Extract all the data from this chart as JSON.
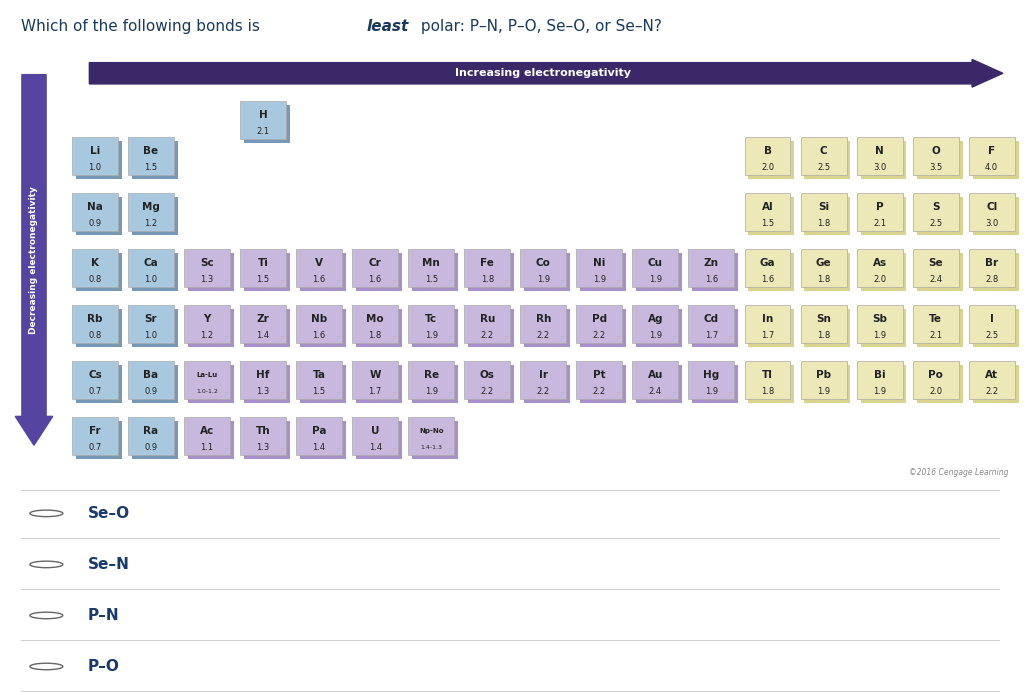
{
  "increasing_label": "Increasing electronegativity",
  "decreasing_label": "Decreasing electronegativity",
  "copyright": "©2016 Cengage Learning",
  "answer_options": [
    "Se–O",
    "Se–N",
    "P–N",
    "P–O"
  ],
  "blue_color": "#a8c8e0",
  "purple_color": "#c8b8de",
  "yellow_color": "#ede8b8",
  "yellow_shadow": "#d8d490",
  "blue_shadow": "#7898b8",
  "purple_shadow": "#a890c8",
  "arrow_color": "#3a2868",
  "left_arrow_color": "#5545a0",
  "elements": [
    {
      "symbol": "H",
      "en": "2.1",
      "col": 4,
      "row": 1,
      "color": "blue",
      "h3d": true
    },
    {
      "symbol": "Li",
      "en": "1.0",
      "col": 1,
      "row": 2,
      "color": "blue"
    },
    {
      "symbol": "Be",
      "en": "1.5",
      "col": 2,
      "row": 2,
      "color": "blue"
    },
    {
      "symbol": "B",
      "en": "2.0",
      "col": 13,
      "row": 2,
      "color": "yellow"
    },
    {
      "symbol": "C",
      "en": "2.5",
      "col": 14,
      "row": 2,
      "color": "yellow"
    },
    {
      "symbol": "N",
      "en": "3.0",
      "col": 15,
      "row": 2,
      "color": "yellow"
    },
    {
      "symbol": "O",
      "en": "3.5",
      "col": 16,
      "row": 2,
      "color": "yellow"
    },
    {
      "symbol": "F",
      "en": "4.0",
      "col": 17,
      "row": 2,
      "color": "yellow"
    },
    {
      "symbol": "Na",
      "en": "0.9",
      "col": 1,
      "row": 3,
      "color": "blue"
    },
    {
      "symbol": "Mg",
      "en": "1.2",
      "col": 2,
      "row": 3,
      "color": "blue"
    },
    {
      "symbol": "Al",
      "en": "1.5",
      "col": 13,
      "row": 3,
      "color": "yellow"
    },
    {
      "symbol": "Si",
      "en": "1.8",
      "col": 14,
      "row": 3,
      "color": "yellow"
    },
    {
      "symbol": "P",
      "en": "2.1",
      "col": 15,
      "row": 3,
      "color": "yellow"
    },
    {
      "symbol": "S",
      "en": "2.5",
      "col": 16,
      "row": 3,
      "color": "yellow"
    },
    {
      "symbol": "Cl",
      "en": "3.0",
      "col": 17,
      "row": 3,
      "color": "yellow"
    },
    {
      "symbol": "K",
      "en": "0.8",
      "col": 1,
      "row": 4,
      "color": "blue"
    },
    {
      "symbol": "Ca",
      "en": "1.0",
      "col": 2,
      "row": 4,
      "color": "blue"
    },
    {
      "symbol": "Sc",
      "en": "1.3",
      "col": 3,
      "row": 4,
      "color": "purple"
    },
    {
      "symbol": "Ti",
      "en": "1.5",
      "col": 4,
      "row": 4,
      "color": "purple"
    },
    {
      "symbol": "V",
      "en": "1.6",
      "col": 5,
      "row": 4,
      "color": "purple"
    },
    {
      "symbol": "Cr",
      "en": "1.6",
      "col": 6,
      "row": 4,
      "color": "purple"
    },
    {
      "symbol": "Mn",
      "en": "1.5",
      "col": 7,
      "row": 4,
      "color": "purple"
    },
    {
      "symbol": "Fe",
      "en": "1.8",
      "col": 8,
      "row": 4,
      "color": "purple"
    },
    {
      "symbol": "Co",
      "en": "1.9",
      "col": 9,
      "row": 4,
      "color": "purple"
    },
    {
      "symbol": "Ni",
      "en": "1.9",
      "col": 10,
      "row": 4,
      "color": "purple"
    },
    {
      "symbol": "Cu",
      "en": "1.9",
      "col": 11,
      "row": 4,
      "color": "purple"
    },
    {
      "symbol": "Zn",
      "en": "1.6",
      "col": 12,
      "row": 4,
      "color": "purple"
    },
    {
      "symbol": "Ga",
      "en": "1.6",
      "col": 13,
      "row": 4,
      "color": "yellow"
    },
    {
      "symbol": "Ge",
      "en": "1.8",
      "col": 14,
      "row": 4,
      "color": "yellow"
    },
    {
      "symbol": "As",
      "en": "2.0",
      "col": 15,
      "row": 4,
      "color": "yellow"
    },
    {
      "symbol": "Se",
      "en": "2.4",
      "col": 16,
      "row": 4,
      "color": "yellow"
    },
    {
      "symbol": "Br",
      "en": "2.8",
      "col": 17,
      "row": 4,
      "color": "yellow"
    },
    {
      "symbol": "Rb",
      "en": "0.8",
      "col": 1,
      "row": 5,
      "color": "blue"
    },
    {
      "symbol": "Sr",
      "en": "1.0",
      "col": 2,
      "row": 5,
      "color": "blue"
    },
    {
      "symbol": "Y",
      "en": "1.2",
      "col": 3,
      "row": 5,
      "color": "purple"
    },
    {
      "symbol": "Zr",
      "en": "1.4",
      "col": 4,
      "row": 5,
      "color": "purple"
    },
    {
      "symbol": "Nb",
      "en": "1.6",
      "col": 5,
      "row": 5,
      "color": "purple"
    },
    {
      "symbol": "Mo",
      "en": "1.8",
      "col": 6,
      "row": 5,
      "color": "purple"
    },
    {
      "symbol": "Tc",
      "en": "1.9",
      "col": 7,
      "row": 5,
      "color": "purple"
    },
    {
      "symbol": "Ru",
      "en": "2.2",
      "col": 8,
      "row": 5,
      "color": "purple"
    },
    {
      "symbol": "Rh",
      "en": "2.2",
      "col": 9,
      "row": 5,
      "color": "purple"
    },
    {
      "symbol": "Pd",
      "en": "2.2",
      "col": 10,
      "row": 5,
      "color": "purple"
    },
    {
      "symbol": "Ag",
      "en": "1.9",
      "col": 11,
      "row": 5,
      "color": "purple"
    },
    {
      "symbol": "Cd",
      "en": "1.7",
      "col": 12,
      "row": 5,
      "color": "purple"
    },
    {
      "symbol": "In",
      "en": "1.7",
      "col": 13,
      "row": 5,
      "color": "yellow"
    },
    {
      "symbol": "Sn",
      "en": "1.8",
      "col": 14,
      "row": 5,
      "color": "yellow"
    },
    {
      "symbol": "Sb",
      "en": "1.9",
      "col": 15,
      "row": 5,
      "color": "yellow"
    },
    {
      "symbol": "Te",
      "en": "2.1",
      "col": 16,
      "row": 5,
      "color": "yellow"
    },
    {
      "symbol": "I",
      "en": "2.5",
      "col": 17,
      "row": 5,
      "color": "yellow"
    },
    {
      "symbol": "Cs",
      "en": "0.7",
      "col": 1,
      "row": 6,
      "color": "blue"
    },
    {
      "symbol": "Ba",
      "en": "0.9",
      "col": 2,
      "row": 6,
      "color": "blue"
    },
    {
      "symbol": "La-Lu",
      "en": "1.0-1.2",
      "col": 3,
      "row": 6,
      "color": "purple"
    },
    {
      "symbol": "Hf",
      "en": "1.3",
      "col": 4,
      "row": 6,
      "color": "purple"
    },
    {
      "symbol": "Ta",
      "en": "1.5",
      "col": 5,
      "row": 6,
      "color": "purple"
    },
    {
      "symbol": "W",
      "en": "1.7",
      "col": 6,
      "row": 6,
      "color": "purple"
    },
    {
      "symbol": "Re",
      "en": "1.9",
      "col": 7,
      "row": 6,
      "color": "purple"
    },
    {
      "symbol": "Os",
      "en": "2.2",
      "col": 8,
      "row": 6,
      "color": "purple"
    },
    {
      "symbol": "Ir",
      "en": "2.2",
      "col": 9,
      "row": 6,
      "color": "purple"
    },
    {
      "symbol": "Pt",
      "en": "2.2",
      "col": 10,
      "row": 6,
      "color": "purple"
    },
    {
      "symbol": "Au",
      "en": "2.4",
      "col": 11,
      "row": 6,
      "color": "purple"
    },
    {
      "symbol": "Hg",
      "en": "1.9",
      "col": 12,
      "row": 6,
      "color": "purple"
    },
    {
      "symbol": "Tl",
      "en": "1.8",
      "col": 13,
      "row": 6,
      "color": "yellow"
    },
    {
      "symbol": "Pb",
      "en": "1.9",
      "col": 14,
      "row": 6,
      "color": "yellow"
    },
    {
      "symbol": "Bi",
      "en": "1.9",
      "col": 15,
      "row": 6,
      "color": "yellow"
    },
    {
      "symbol": "Po",
      "en": "2.0",
      "col": 16,
      "row": 6,
      "color": "yellow"
    },
    {
      "symbol": "At",
      "en": "2.2",
      "col": 17,
      "row": 6,
      "color": "yellow"
    },
    {
      "symbol": "Fr",
      "en": "0.7",
      "col": 1,
      "row": 7,
      "color": "blue"
    },
    {
      "symbol": "Ra",
      "en": "0.9",
      "col": 2,
      "row": 7,
      "color": "blue"
    },
    {
      "symbol": "Ac",
      "en": "1.1",
      "col": 3,
      "row": 7,
      "color": "purple"
    },
    {
      "symbol": "Th",
      "en": "1.3",
      "col": 4,
      "row": 7,
      "color": "purple"
    },
    {
      "symbol": "Pa",
      "en": "1.4",
      "col": 5,
      "row": 7,
      "color": "purple"
    },
    {
      "symbol": "U",
      "en": "1.4",
      "col": 6,
      "row": 7,
      "color": "purple"
    },
    {
      "symbol": "Np-No",
      "en": "1.4-1.3",
      "col": 7,
      "row": 7,
      "color": "purple"
    }
  ]
}
